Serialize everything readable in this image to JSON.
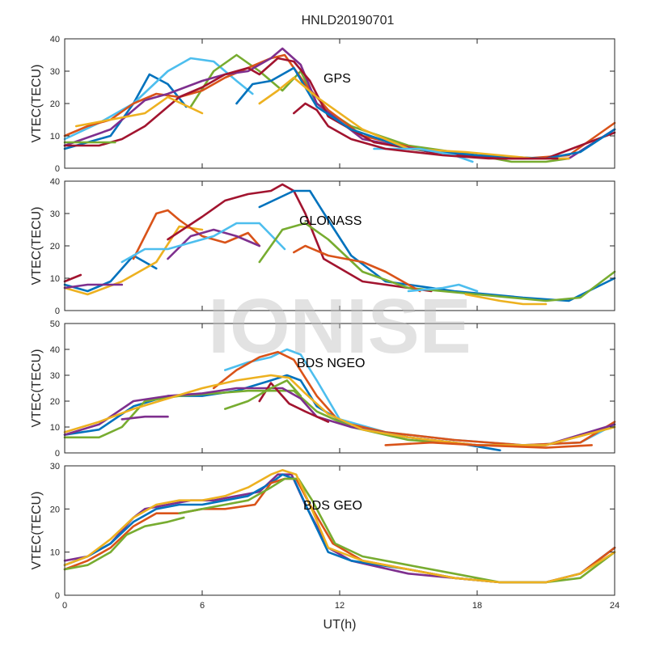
{
  "figure_title": "HNLD20190701",
  "watermark": "IONISE",
  "chart_data": [
    {
      "type": "line",
      "title": "HNLD20190701",
      "label": "GPS",
      "ylabel": "VTEC(TECU)",
      "xlabel": "",
      "xlim": [
        0,
        24
      ],
      "ylim": [
        0,
        40
      ],
      "yticks": [
        0,
        10,
        20,
        30,
        40
      ],
      "xticks": [
        0,
        6,
        12,
        18,
        24
      ],
      "series": [
        {
          "color": "#0072BD",
          "x": [
            0,
            2,
            3,
            3.7,
            4.5,
            5.3
          ],
          "y": [
            6,
            10,
            20,
            29,
            26,
            19
          ]
        },
        {
          "color": "#4DBEEE",
          "x": [
            0,
            1.5,
            3,
            4.5,
            5.5,
            6.5,
            7.5,
            8.2
          ],
          "y": [
            9,
            14,
            20,
            30,
            34,
            33,
            27,
            23
          ]
        },
        {
          "color": "#77AC30",
          "x": [
            5.5,
            6.5,
            7.5,
            8.5,
            9.5,
            10.3,
            11,
            12.5,
            15,
            18,
            19.5,
            21,
            22
          ],
          "y": [
            19,
            30,
            35,
            30,
            24,
            30,
            20,
            13,
            7,
            4,
            2,
            2,
            3
          ]
        },
        {
          "color": "#D95319",
          "x": [
            0,
            1,
            2,
            3,
            4,
            5,
            6,
            7,
            8,
            9,
            9.6,
            10.5,
            11.5,
            13,
            16,
            18,
            20,
            22,
            24
          ],
          "y": [
            10,
            13,
            15,
            20,
            23,
            22,
            24,
            28,
            31,
            34,
            35,
            26,
            18,
            10,
            5,
            4,
            3,
            4,
            14
          ]
        },
        {
          "color": "#7E2F8E",
          "x": [
            0,
            2,
            3.5,
            4.5,
            6,
            7,
            8,
            9,
            9.5,
            10.3,
            11,
            13,
            16,
            19,
            22,
            24
          ],
          "y": [
            7,
            12,
            21,
            23,
            27,
            29,
            30,
            34,
            37,
            32,
            20,
            9,
            5,
            3,
            3,
            12
          ]
        },
        {
          "color": "#A2142F",
          "x": [
            0,
            1.5,
            2.5,
            3.5,
            5,
            6,
            7,
            8,
            8.5,
            9.3,
            10,
            10.7,
            11.5,
            13.5,
            16,
            19,
            21,
            24
          ],
          "y": [
            7,
            7,
            9,
            13,
            22,
            25,
            29,
            31,
            29,
            34,
            33,
            27,
            16,
            8,
            5,
            3,
            3,
            11
          ]
        },
        {
          "color": "#EDB120",
          "x": [
            0.5,
            2,
            3.5,
            4.5,
            6
          ],
          "y": [
            13,
            15,
            17,
            22,
            17
          ]
        },
        {
          "color": "#0072BD",
          "x": [
            7.5,
            8.2,
            9,
            10,
            11,
            12.5,
            15,
            18,
            21,
            22.5,
            24
          ],
          "y": [
            20,
            26,
            27,
            31,
            19,
            12,
            6,
            4,
            3,
            5,
            12
          ]
        },
        {
          "color": "#77AC30",
          "x": [
            0,
            1,
            2.2
          ],
          "y": [
            8,
            8,
            8
          ]
        },
        {
          "color": "#EDB120",
          "x": [
            8.5,
            9.3,
            10,
            11,
            13,
            15,
            17.5,
            19,
            20.5,
            22
          ],
          "y": [
            20,
            24,
            28,
            22,
            12,
            6,
            5,
            4,
            3,
            3
          ]
        },
        {
          "color": "#4DBEEE",
          "x": [
            13.5,
            15.5,
            17,
            17.8
          ],
          "y": [
            6,
            6,
            4,
            2
          ]
        },
        {
          "color": "#A2142F",
          "x": [
            10,
            10.5,
            11,
            11.5,
            12.5,
            14,
            16.5,
            18.5,
            21.5
          ],
          "y": [
            17,
            20,
            18,
            13,
            9,
            6,
            4,
            3,
            3
          ]
        }
      ]
    },
    {
      "type": "line",
      "label": "GLONASS",
      "ylabel": "VTEC(TECU)",
      "xlabel": "",
      "xlim": [
        0,
        24
      ],
      "ylim": [
        0,
        40
      ],
      "yticks": [
        0,
        10,
        20,
        30,
        40
      ],
      "xticks": [
        0,
        6,
        12,
        18,
        24
      ],
      "series": [
        {
          "color": "#A2142F",
          "x": [
            0,
            0.7
          ],
          "y": [
            9,
            11
          ]
        },
        {
          "color": "#0072BD",
          "x": [
            0,
            1,
            2,
            3,
            4
          ],
          "y": [
            8,
            6,
            9,
            17,
            13
          ]
        },
        {
          "color": "#EDB120",
          "x": [
            0,
            1,
            2.5,
            4,
            5,
            6
          ],
          "y": [
            7,
            5,
            9,
            15,
            26,
            25
          ]
        },
        {
          "color": "#D95319",
          "x": [
            3,
            4,
            4.5,
            5,
            6,
            7,
            8,
            8.5
          ],
          "y": [
            16,
            30,
            31,
            28,
            23,
            21,
            24,
            20
          ]
        },
        {
          "color": "#7E2F8E",
          "x": [
            4.5,
            5.5,
            6.5,
            7.5,
            8.5
          ],
          "y": [
            16,
            23,
            25,
            23,
            20
          ]
        },
        {
          "color": "#4DBEEE",
          "x": [
            2.5,
            3.5,
            4.5,
            5.5,
            6.5,
            7.5,
            8.5,
            9.6
          ],
          "y": [
            15,
            19,
            19,
            21,
            23,
            27,
            27,
            19
          ]
        },
        {
          "color": "#A2142F",
          "x": [
            4.5,
            6,
            7,
            8,
            9,
            9.5,
            10,
            10.5,
            11.3,
            13,
            16
          ],
          "y": [
            22,
            29,
            34,
            36,
            37,
            39,
            37,
            30,
            16,
            9,
            6
          ]
        },
        {
          "color": "#0072BD",
          "x": [
            8.5,
            10,
            10.7,
            11.5,
            12.5,
            14,
            17,
            20,
            22,
            24
          ],
          "y": [
            32,
            37,
            37,
            28,
            17,
            9,
            6,
            4,
            3,
            10
          ]
        },
        {
          "color": "#77AC30",
          "x": [
            8.5,
            9.5,
            10.5,
            11.5,
            13,
            15,
            18,
            21,
            22.5,
            24
          ],
          "y": [
            15,
            25,
            27,
            22,
            12,
            7,
            5,
            3,
            4,
            12
          ]
        },
        {
          "color": "#D95319",
          "x": [
            10,
            10.5,
            11.5,
            13,
            14,
            15.5
          ],
          "y": [
            18,
            20,
            17,
            15,
            12,
            6
          ]
        },
        {
          "color": "#4DBEEE",
          "x": [
            15,
            16.5,
            17.2,
            18
          ],
          "y": [
            6,
            7,
            8,
            6
          ]
        },
        {
          "color": "#7E2F8E",
          "x": [
            0,
            1,
            2.5
          ],
          "y": [
            7,
            8,
            8
          ]
        },
        {
          "color": "#EDB120",
          "x": [
            17.5,
            19,
            20,
            21
          ],
          "y": [
            5,
            3,
            2,
            2
          ]
        }
      ]
    },
    {
      "type": "line",
      "label": "BDS NGEO",
      "ylabel": "VTEC(TECU)",
      "xlabel": "",
      "xlim": [
        0,
        24
      ],
      "ylim": [
        0,
        50
      ],
      "yticks": [
        0,
        10,
        20,
        30,
        40,
        50
      ],
      "xticks": [
        0,
        6,
        12,
        18,
        24
      ],
      "series": [
        {
          "color": "#4DBEEE",
          "x": [
            7,
            8,
            9,
            9.7,
            10.3,
            11,
            12,
            14,
            17,
            20,
            22.5,
            24
          ],
          "y": [
            32,
            35,
            37,
            40,
            38,
            28,
            13,
            8,
            5,
            3,
            4,
            11
          ]
        },
        {
          "color": "#D95319",
          "x": [
            6.5,
            7.5,
            8.5,
            9.3,
            10,
            11,
            12,
            14,
            17,
            20,
            22.5,
            24
          ],
          "y": [
            25,
            32,
            37,
            39,
            36,
            22,
            12,
            8,
            5,
            3,
            4,
            12
          ]
        },
        {
          "color": "#0072BD",
          "x": [
            0,
            1.5,
            3,
            4.5,
            6,
            7.5,
            9,
            9.7,
            10.3,
            11,
            12.5,
            15,
            17,
            19
          ],
          "y": [
            7,
            9,
            18,
            22,
            22,
            24,
            28,
            30,
            28,
            18,
            10,
            6,
            4,
            1
          ]
        },
        {
          "color": "#77AC30",
          "x": [
            0,
            1.5,
            2.5,
            3.5,
            5,
            6.5,
            8,
            9,
            10,
            11,
            12.5,
            15,
            18,
            21,
            24
          ],
          "y": [
            6,
            6,
            10,
            20,
            22,
            23,
            24,
            24,
            24,
            16,
            10,
            5,
            3,
            3,
            10
          ]
        },
        {
          "color": "#7E2F8E",
          "x": [
            0,
            1.5,
            3,
            4.5,
            6,
            7.5,
            8.5,
            9.5,
            10.3,
            11,
            12.5,
            15,
            18,
            21,
            24
          ],
          "y": [
            7,
            11,
            20,
            22,
            23,
            25,
            25,
            25,
            21,
            14,
            10,
            6,
            3,
            3,
            11
          ]
        },
        {
          "color": "#EDB120",
          "x": [
            0,
            1.5,
            3,
            4.5,
            6,
            7.5,
            9,
            9.8,
            10.5,
            11.5,
            13,
            15,
            18,
            21,
            24
          ],
          "y": [
            8,
            12,
            17,
            21,
            25,
            28,
            30,
            29,
            23,
            15,
            9,
            6,
            3,
            3,
            10
          ]
        },
        {
          "color": "#A2142F",
          "x": [
            8.5,
            9,
            9.8,
            10.5,
            11.5
          ],
          "y": [
            20,
            27,
            19,
            16,
            12
          ]
        },
        {
          "color": "#77AC30",
          "x": [
            7,
            8,
            9,
            9.7,
            10.3
          ],
          "y": [
            17,
            20,
            25,
            28,
            22
          ]
        },
        {
          "color": "#7E2F8E",
          "x": [
            2.5,
            3.5,
            4.5
          ],
          "y": [
            13,
            14,
            14
          ]
        },
        {
          "color": "#D95319",
          "x": [
            14,
            16,
            18,
            21,
            23
          ],
          "y": [
            3,
            4,
            3,
            2,
            3
          ]
        }
      ]
    },
    {
      "type": "line",
      "label": "BDS GEO",
      "ylabel": "VTEC(TECU)",
      "xlabel": "UT(h)",
      "xlim": [
        0,
        24
      ],
      "ylim": [
        0,
        30
      ],
      "yticks": [
        0,
        10,
        20,
        30
      ],
      "xticks": [
        0,
        6,
        12,
        18,
        24
      ],
      "xticklabels": [
        "0",
        "6",
        "12",
        "18",
        "24"
      ],
      "series": [
        {
          "color": "#7E2F8E",
          "x": [
            0,
            1,
            2,
            3,
            3.5,
            4.5,
            5.5,
            6.5,
            7.5,
            8.5,
            9.3,
            9.9,
            10.5,
            11.5,
            12.5,
            15,
            17,
            19,
            21,
            22.5,
            24
          ],
          "y": [
            8,
            9,
            12,
            18,
            20,
            21,
            22,
            22,
            23,
            24,
            28,
            28,
            21,
            11,
            8,
            5,
            4,
            3,
            3,
            5,
            11
          ]
        },
        {
          "color": "#0072BD",
          "x": [
            0,
            1,
            2,
            3,
            4,
            5,
            6,
            7,
            8,
            9,
            9.5,
            10,
            10.6,
            11.5,
            12.5,
            15,
            17,
            19,
            21,
            22.5,
            24
          ],
          "y": [
            7,
            9,
            12,
            17,
            20,
            21,
            21,
            22,
            23,
            26,
            28,
            27,
            20,
            10,
            8,
            6,
            4,
            3,
            3,
            5,
            11
          ]
        },
        {
          "color": "#D95319",
          "x": [
            0,
            1,
            2,
            3,
            4,
            5,
            6,
            7,
            8.3,
            9,
            9.6,
            10.1,
            10.7,
            11.7,
            13,
            15,
            17,
            19,
            21,
            22.5,
            24
          ],
          "y": [
            6,
            8,
            11,
            16,
            19,
            19,
            20,
            20,
            21,
            26,
            27,
            27,
            21,
            12,
            8,
            6,
            4,
            3,
            3,
            5,
            11
          ]
        },
        {
          "color": "#77AC30",
          "x": [
            0,
            1,
            2,
            2.7,
            3.5,
            4.5,
            5.2
          ],
          "y": [
            6,
            7,
            10,
            14,
            16,
            17,
            18
          ]
        },
        {
          "color": "#77AC30",
          "x": [
            5,
            6,
            7,
            8,
            9,
            9.6,
            10.2,
            10.8,
            11.8,
            13,
            15,
            17,
            19,
            21,
            22.5,
            24
          ],
          "y": [
            19,
            20,
            21,
            22,
            25,
            27,
            27,
            22,
            12,
            9,
            7,
            5,
            3,
            3,
            4,
            10
          ]
        },
        {
          "color": "#EDB120",
          "x": [
            0,
            1,
            2,
            3,
            4,
            5,
            6,
            7,
            8,
            9,
            9.5,
            10.1,
            10.7,
            11.5,
            13,
            15,
            17,
            19,
            21,
            22.5,
            24
          ],
          "y": [
            7,
            9,
            13,
            18,
            21,
            22,
            22,
            23,
            25,
            28,
            29,
            28,
            21,
            11,
            8,
            6,
            4,
            3,
            3,
            5,
            10
          ]
        }
      ]
    }
  ]
}
